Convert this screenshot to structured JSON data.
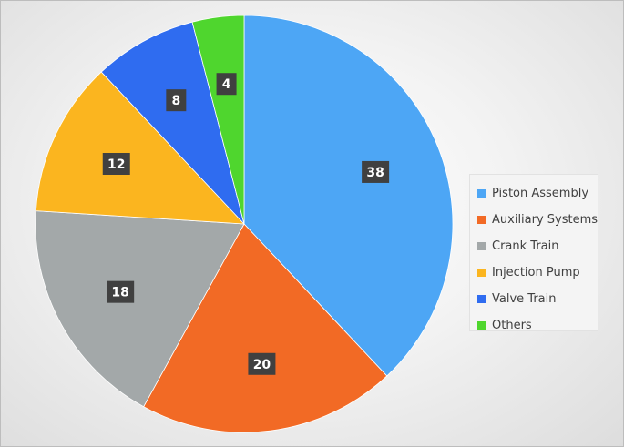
{
  "chart_data": {
    "type": "pie",
    "categories": [
      "Piston Assembly",
      "Auxiliary Systems",
      "Crank Train",
      "Injection Pump",
      "Valve Train",
      "Others"
    ],
    "values": [
      38,
      20,
      18,
      12,
      8,
      4
    ],
    "data_labels": [
      "38",
      "20",
      "18",
      "12",
      "8",
      "4"
    ],
    "colors": [
      "#4da6f5",
      "#f26a25",
      "#a3a8a9",
      "#fbb51f",
      "#2f6cf0",
      "#4fd62e"
    ],
    "legend_placement": "right",
    "start_angle_deg": 0,
    "direction": "clockwise"
  }
}
